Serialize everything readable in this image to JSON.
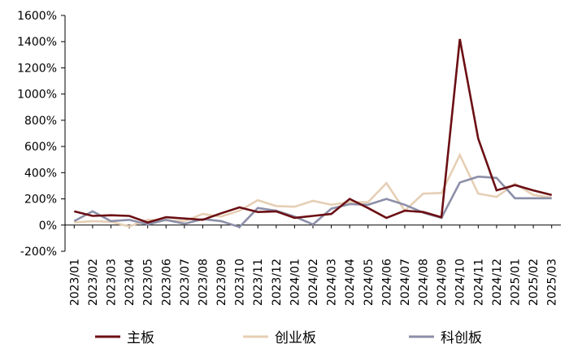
{
  "chart_data": {
    "type": "line",
    "title": "",
    "xlabel": "",
    "ylabel": "",
    "ylim": [
      -200,
      1600
    ],
    "y_ticks": [
      -200,
      0,
      200,
      400,
      600,
      800,
      1000,
      1200,
      1400,
      1600
    ],
    "y_tick_labels": [
      "-200%",
      "0%",
      "200%",
      "400%",
      "600%",
      "800%",
      "1000%",
      "1200%",
      "1400%",
      "1600%"
    ],
    "grid": false,
    "legend_position": "bottom",
    "categories": [
      "2023/01",
      "2023/02",
      "2023/03",
      "2023/04",
      "2023/05",
      "2023/06",
      "2023/07",
      "2023/08",
      "2023/09",
      "2023/10",
      "2023/11",
      "2023/12",
      "2024/01",
      "2024/02",
      "2024/03",
      "2024/04",
      "2024/05",
      "2024/06",
      "2024/07",
      "2024/08",
      "2024/09",
      "2024/10",
      "2024/11",
      "2024/12",
      "2025/01",
      "2025/02",
      "2025/03"
    ],
    "series": [
      {
        "name": "主板",
        "color": "#6b0f14",
        "values": [
          105,
          70,
          75,
          70,
          20,
          60,
          50,
          40,
          90,
          135,
          100,
          105,
          55,
          70,
          85,
          200,
          130,
          55,
          110,
          100,
          60,
          1420,
          660,
          265,
          305,
          265,
          230
        ]
      },
      {
        "name": "创业板",
        "color": "#e6cfb5",
        "values": [
          20,
          30,
          25,
          -10,
          40,
          35,
          30,
          85,
          65,
          110,
          190,
          145,
          140,
          185,
          155,
          175,
          175,
          320,
          110,
          240,
          245,
          535,
          240,
          215,
          315,
          230,
          210
        ]
      },
      {
        "name": "科创板",
        "color": "#8c8fa8",
        "values": [
          30,
          105,
          30,
          40,
          5,
          40,
          10,
          45,
          30,
          -15,
          130,
          110,
          65,
          5,
          125,
          160,
          155,
          200,
          155,
          95,
          55,
          325,
          370,
          360,
          205,
          205,
          205
        ]
      }
    ]
  }
}
